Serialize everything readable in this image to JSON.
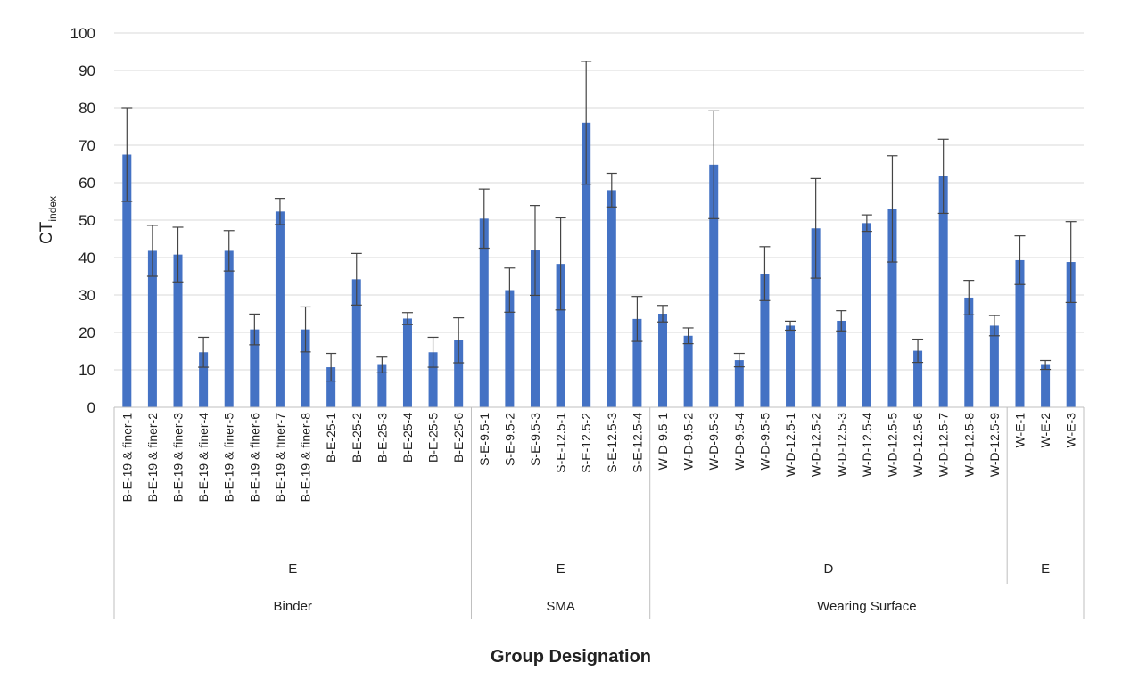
{
  "chart_data": {
    "type": "bar",
    "ylabel_main": "CT",
    "ylabel_sub": "index",
    "xlabel": "Group Designation",
    "ylim": [
      0,
      100
    ],
    "yticks": [
      0,
      10,
      20,
      30,
      40,
      50,
      60,
      70,
      80,
      90,
      100
    ],
    "grid": true,
    "colors": {
      "bar": "#4472C4",
      "error": "#444444",
      "grid": "#D9D9D9",
      "axis": "#BFBFBF"
    },
    "categories": [
      "B-E-19 & finer-1",
      "B-E-19 & finer-2",
      "B-E-19 & finer-3",
      "B-E-19 & finer-4",
      "B-E-19 & finer-5",
      "B-E-19 & finer-6",
      "B-E-19 & finer-7",
      "B-E-19 & finer-8",
      "B-E-25-1",
      "B-E-25-2",
      "B-E-25-3",
      "B-E-25-4",
      "B-E-25-5",
      "B-E-25-6",
      "S-E-9.5-1",
      "S-E-9.5-2",
      "S-E-9.5-3",
      "S-E-12.5-1",
      "S-E-12.5-2",
      "S-E-12.5-3",
      "S-E-12.5-4",
      "W-D-9.5-1",
      "W-D-9.5-2",
      "W-D-9.5-3",
      "W-D-9.5-4",
      "W-D-9.5-5",
      "W-D-12.5-1",
      "W-D-12.5-2",
      "W-D-12.5-3",
      "W-D-12.5-4",
      "W-D-12.5-5",
      "W-D-12.5-6",
      "W-D-12.5-7",
      "W-D-12.5-8",
      "W-D-12.5-9",
      "W-E-1",
      "W-E-2",
      "W-E-3"
    ],
    "values": [
      67.5,
      41.8,
      40.8,
      14.7,
      41.8,
      20.8,
      52.3,
      20.8,
      10.7,
      34.2,
      11.3,
      23.7,
      14.7,
      17.9,
      50.4,
      31.3,
      41.9,
      38.3,
      76.0,
      58.0,
      23.6,
      25.0,
      19.1,
      64.8,
      12.6,
      35.7,
      21.8,
      47.8,
      23.1,
      49.2,
      53.0,
      15.1,
      61.7,
      29.3,
      21.8,
      39.3,
      11.3,
      38.8
    ],
    "errors": [
      12.5,
      6.8,
      7.3,
      4.0,
      5.4,
      4.1,
      3.5,
      6.0,
      3.7,
      6.9,
      2.1,
      1.6,
      4.0,
      6.0,
      7.9,
      5.9,
      12.0,
      12.3,
      16.4,
      4.5,
      6.0,
      2.2,
      2.1,
      14.4,
      1.8,
      7.2,
      1.2,
      13.3,
      2.7,
      2.2,
      14.2,
      3.1,
      9.9,
      4.6,
      2.7,
      6.5,
      1.2,
      10.8
    ],
    "groups_level1": [
      {
        "label": "E",
        "start": 0,
        "count": 14
      },
      {
        "label": "E",
        "start": 14,
        "count": 7
      },
      {
        "label": "D",
        "start": 21,
        "count": 14
      },
      {
        "label": "E",
        "start": 35,
        "count": 3
      }
    ],
    "groups_level2": [
      {
        "label": "Binder",
        "start": 0,
        "count": 14
      },
      {
        "label": "SMA",
        "start": 14,
        "count": 7
      },
      {
        "label": "Wearing Surface",
        "start": 21,
        "count": 17
      }
    ]
  }
}
